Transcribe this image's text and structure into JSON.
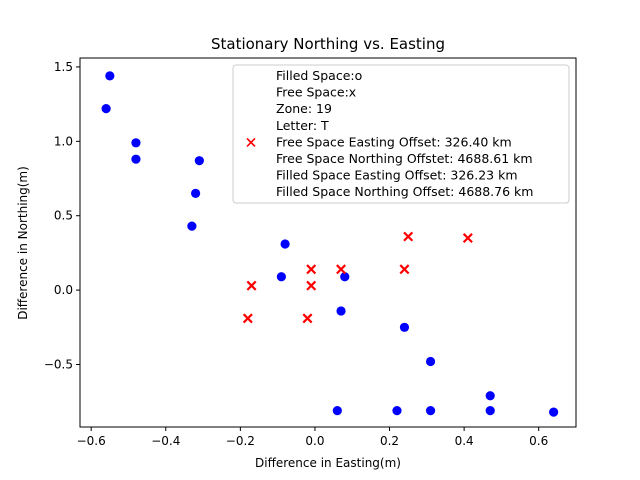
{
  "chart_data": {
    "type": "scatter",
    "title": "Stationary Northing vs. Easting",
    "xlabel": "Difference in Easting(m)",
    "ylabel": "Difference in Northing(m)",
    "xlim": [
      -0.63,
      0.7
    ],
    "ylim": [
      -0.92,
      1.56
    ],
    "xticks": [
      -0.6,
      -0.4,
      -0.2,
      0.0,
      0.2,
      0.4,
      0.6
    ],
    "xtick_labels": [
      "−0.6",
      "−0.4",
      "−0.2",
      "0.0",
      "0.2",
      "0.4",
      "0.6"
    ],
    "yticks": [
      -0.5,
      0.0,
      0.5,
      1.0,
      1.5
    ],
    "ytick_labels": [
      "−0.5",
      "0.0",
      "0.5",
      "1.0",
      "1.5"
    ],
    "grid": false,
    "legend_position": "top-right",
    "legend_entries": [
      "Filled Space:o",
      "Free Space:x",
      "Zone: 19",
      "Letter: T",
      "Free Space Easting Offset: 326.40 km",
      "Free Space Northing Offstet: 4688.61 km",
      "Filled Space Easting Offset: 326.23 km",
      "Filled Space Northing Offset: 4688.76 km"
    ],
    "series": [
      {
        "marker": "o",
        "color": "#0000ff",
        "points": [
          [
            -0.55,
            1.44
          ],
          [
            -0.56,
            1.22
          ],
          [
            -0.48,
            0.99
          ],
          [
            -0.48,
            0.88
          ],
          [
            -0.31,
            0.87
          ],
          [
            -0.32,
            0.65
          ],
          [
            -0.33,
            0.43
          ],
          [
            -0.08,
            0.31
          ],
          [
            -0.09,
            0.09
          ],
          [
            0.08,
            0.09
          ],
          [
            0.07,
            -0.14
          ],
          [
            0.24,
            -0.25
          ],
          [
            0.31,
            -0.48
          ],
          [
            0.47,
            -0.71
          ],
          [
            0.06,
            -0.81
          ],
          [
            0.22,
            -0.81
          ],
          [
            0.31,
            -0.81
          ],
          [
            0.47,
            -0.81
          ],
          [
            0.64,
            -0.82
          ]
        ]
      },
      {
        "name": "Free Space:x",
        "marker": "x",
        "color": "#ff0000",
        "points": [
          [
            -0.18,
            -0.19
          ],
          [
            -0.17,
            0.03
          ],
          [
            -0.02,
            -0.19
          ],
          [
            -0.01,
            0.03
          ],
          [
            -0.01,
            0.14
          ],
          [
            0.07,
            0.14
          ],
          [
            0.24,
            0.14
          ],
          [
            0.25,
            0.36
          ],
          [
            0.41,
            0.35
          ]
        ]
      }
    ]
  }
}
